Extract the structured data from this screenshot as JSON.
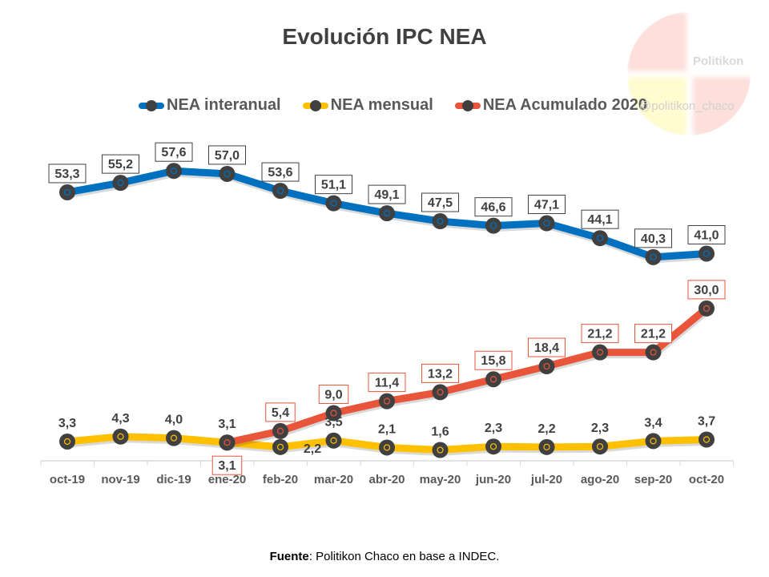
{
  "watermark": {
    "name": "Politikon",
    "handle": "@politikon_chaco"
  },
  "source": {
    "label": "Fuente",
    "text": ": Politikon Chaco  en base a INDEC."
  },
  "chart_data": {
    "type": "line",
    "title": "Evolución IPC NEA",
    "categories": [
      "oct-19",
      "nov-19",
      "dic-19",
      "ene-20",
      "feb-20",
      "mar-20",
      "abr-20",
      "may-20",
      "jun-20",
      "jul-20",
      "ago-20",
      "sep-20",
      "oct-20"
    ],
    "series": [
      {
        "name": "NEA interanual",
        "color": "#0070C0",
        "values": [
          53.3,
          55.2,
          57.6,
          57.0,
          53.6,
          51.1,
          49.1,
          47.5,
          46.6,
          47.1,
          44.1,
          40.3,
          41.0
        ],
        "labels": [
          "53,3",
          "55,2",
          "57,6",
          "57,0",
          "53,6",
          "51,1",
          "49,1",
          "47,5",
          "46,6",
          "47,1",
          "44,1",
          "40,3",
          "41,0"
        ]
      },
      {
        "name": "NEA mensual",
        "color": "#FFC000",
        "values": [
          3.3,
          4.3,
          4.0,
          3.1,
          2.2,
          3.5,
          2.1,
          1.6,
          2.3,
          2.2,
          2.3,
          3.4,
          3.7
        ],
        "labels": [
          "3,3",
          "4,3",
          "4,0",
          "3,1",
          "2,2",
          "3,5",
          "2,1",
          "1,6",
          "2,3",
          "2,2",
          "2,3",
          "3,4",
          "3,7"
        ]
      },
      {
        "name": "NEA Acumulado 2020",
        "color": "#E8553A",
        "values": [
          null,
          null,
          null,
          3.1,
          5.4,
          9.0,
          11.4,
          13.2,
          15.8,
          18.4,
          21.2,
          21.2,
          30.0
        ],
        "labels": [
          null,
          null,
          null,
          "3,1",
          "5,4",
          "9,0",
          "11,4",
          "13,2",
          "15,8",
          "18,4",
          "21,2",
          "21,2",
          "30,0"
        ]
      }
    ],
    "marker_color": "#404040",
    "y_axis_visible": false,
    "grid": false,
    "legend": "top"
  }
}
